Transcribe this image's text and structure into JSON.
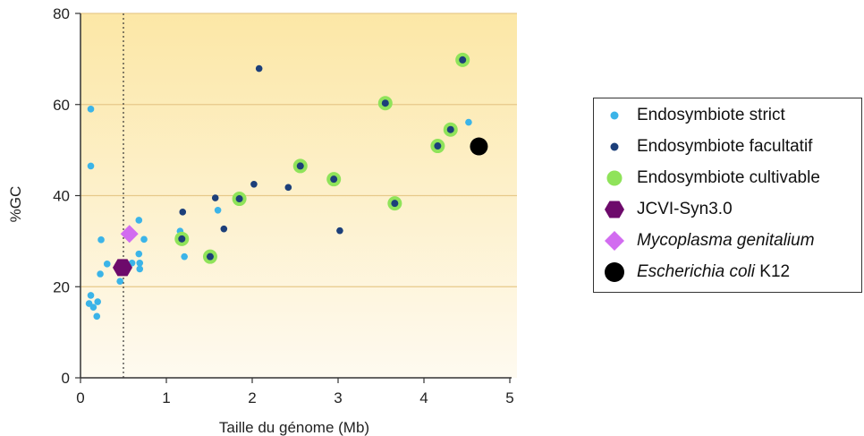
{
  "chart_data": {
    "type": "scatter",
    "title": "",
    "xlabel": "Taille du génome (Mb)",
    "ylabel": "%GC",
    "xlim": [
      0,
      5
    ],
    "ylim": [
      0,
      80
    ],
    "xticks": [
      "0",
      "1",
      "2",
      "3",
      "4",
      "5"
    ],
    "yticks": [
      "0",
      "20",
      "40",
      "60",
      "80"
    ],
    "grid": "horizontal",
    "reference_line": {
      "x": 0.5,
      "style": "dotted"
    },
    "legend_position": "right",
    "series": [
      {
        "name": "Endosymbiote strict",
        "color": "#3bb4e8",
        "marker": "small-circle",
        "points": [
          [
            0.12,
            59.0
          ],
          [
            0.12,
            46.5
          ],
          [
            0.24,
            30.3
          ],
          [
            0.31,
            25.0
          ],
          [
            0.23,
            22.8
          ],
          [
            0.12,
            18.1
          ],
          [
            0.1,
            16.3
          ],
          [
            0.15,
            15.5
          ],
          [
            0.2,
            16.7
          ],
          [
            0.19,
            13.5
          ],
          [
            0.46,
            21.2
          ],
          [
            0.68,
            34.6
          ],
          [
            0.74,
            30.4
          ],
          [
            0.6,
            25.2
          ],
          [
            0.68,
            27.2
          ],
          [
            0.69,
            25.2
          ],
          [
            0.69,
            23.9
          ],
          [
            1.16,
            32.2
          ],
          [
            1.21,
            26.6
          ],
          [
            1.6,
            36.8
          ],
          [
            4.52,
            56.1
          ]
        ]
      },
      {
        "name": "Endosymbiote facultatif",
        "color": "#1c3f7a",
        "marker": "small-circle",
        "points": [
          [
            2.08,
            67.9
          ],
          [
            1.19,
            36.4
          ],
          [
            1.57,
            39.5
          ],
          [
            1.67,
            32.7
          ],
          [
            2.02,
            42.5
          ],
          [
            2.42,
            41.8
          ],
          [
            3.02,
            32.3
          ]
        ]
      },
      {
        "name": "Endosymbiote cultivable",
        "color": "#8fe35a",
        "marker": "ringed-circle",
        "points": [
          [
            1.18,
            30.5
          ],
          [
            1.51,
            26.6
          ],
          [
            1.85,
            39.3
          ],
          [
            2.56,
            46.5
          ],
          [
            2.95,
            43.6
          ],
          [
            3.55,
            60.3
          ],
          [
            3.66,
            38.3
          ],
          [
            4.16,
            50.9
          ],
          [
            4.31,
            54.5
          ],
          [
            4.45,
            69.8
          ]
        ]
      },
      {
        "name": "JCVI-Syn3.0",
        "color": "#6d0a6b",
        "marker": "hexagon",
        "points": [
          [
            0.49,
            24.2
          ]
        ]
      },
      {
        "name": "Mycoplasma genitalium",
        "color": "#d26cf0",
        "marker": "diamond",
        "points": [
          [
            0.57,
            31.6
          ]
        ]
      },
      {
        "name": "Escherichia coli K12",
        "color": "#000000",
        "marker": "big-circle",
        "points": [
          [
            4.64,
            50.8
          ]
        ]
      }
    ]
  },
  "legend": {
    "items": [
      {
        "label": "Endosymbiote strict",
        "marker": "small-circle",
        "color": "#3bb4e8"
      },
      {
        "label": "Endosymbiote facultatif",
        "marker": "small-circle",
        "color": "#1c3f7a"
      },
      {
        "label": "Endosymbiote cultivable",
        "marker": "ringed-circle",
        "color": "#8fe35a"
      },
      {
        "label": "JCVI-Syn3.0",
        "marker": "hexagon",
        "color": "#6d0a6b"
      },
      {
        "label_italic": "Mycoplasma genitalium",
        "marker": "diamond",
        "color": "#d26cf0"
      },
      {
        "label_italic": "Escherichia coli",
        "label_suffix": " K12",
        "marker": "big-circle",
        "color": "#000000"
      }
    ]
  },
  "style": {
    "plot_gradient_top": "#fce7a6",
    "plot_gradient_bottom": "#fefaf0",
    "grid_color": "#e7c98a",
    "cultivable_ring": "#8fe35a",
    "cultivable_center": "#1c3f7a"
  }
}
